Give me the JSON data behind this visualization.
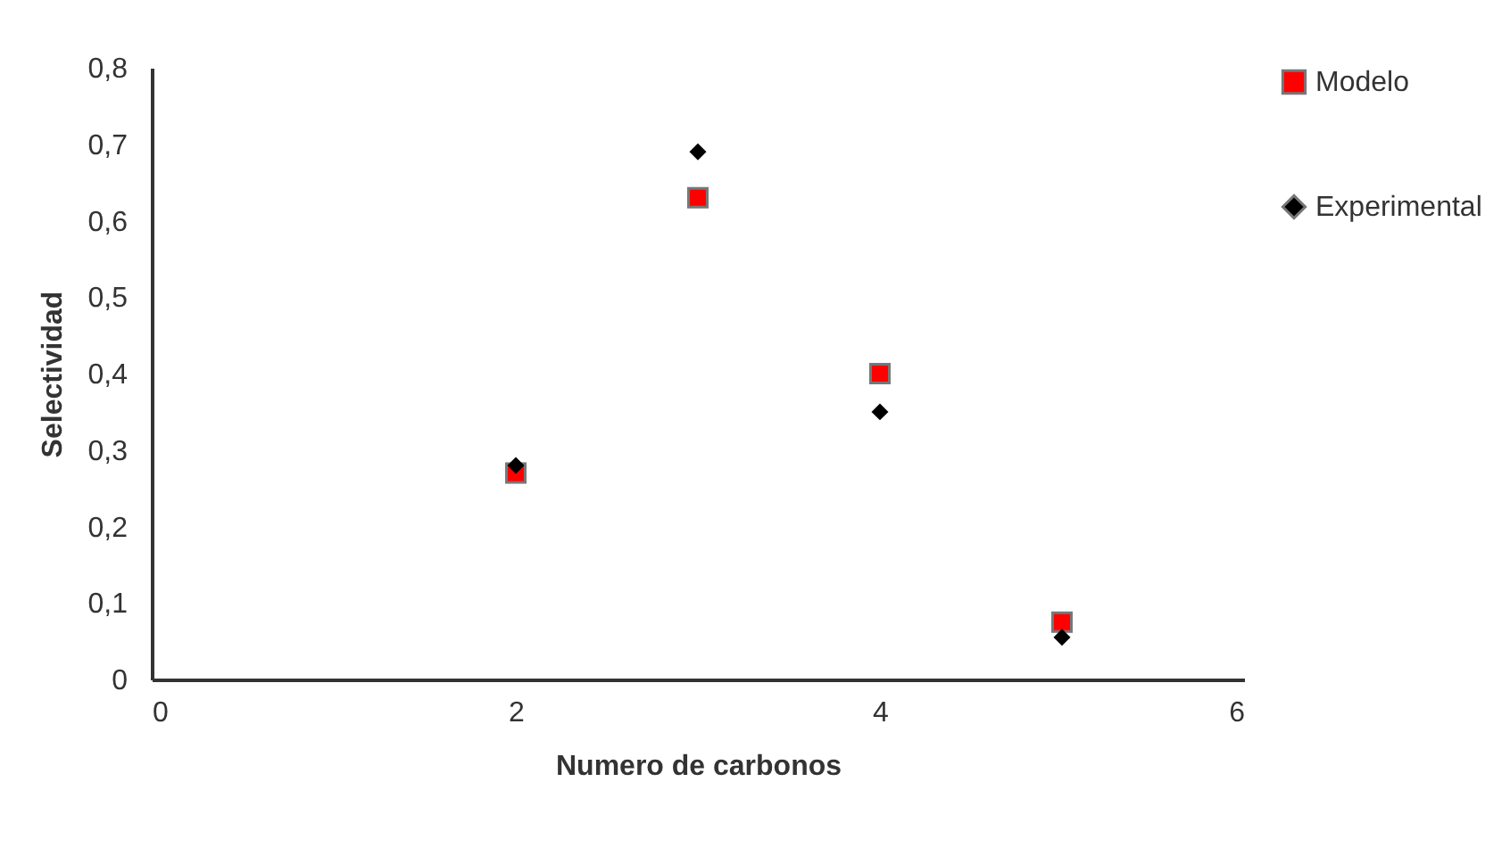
{
  "chart_data": {
    "type": "scatter",
    "xlabel": "Numero de carbonos",
    "ylabel": "Selectividad",
    "x": [
      2,
      3,
      4,
      5
    ],
    "series": [
      {
        "name": "Modelo",
        "color": "#ff0000",
        "marker": "square",
        "values": [
          0.27,
          0.63,
          0.4,
          0.075
        ]
      },
      {
        "name": "Experimental",
        "color": "#000000",
        "marker": "diamond",
        "values": [
          0.28,
          0.69,
          0.35,
          0.055
        ]
      }
    ],
    "xlim": [
      0,
      6
    ],
    "xticks": [
      0,
      2,
      4,
      6
    ],
    "ylim": [
      0,
      0.8
    ],
    "yticks": [
      0,
      {
        "value": 0.1,
        "label": "0,1"
      },
      {
        "value": 0.2,
        "label": "0,2"
      },
      {
        "value": 0.3,
        "label": "0,3"
      },
      {
        "value": 0.4,
        "label": "0,4"
      },
      {
        "value": 0.5,
        "label": "0,5"
      },
      {
        "value": 0.6,
        "label": "0,6"
      },
      {
        "value": 0.7,
        "label": "0,7"
      },
      {
        "value": 0.8,
        "label": "0,8"
      }
    ],
    "grid": false,
    "legend": "right"
  }
}
